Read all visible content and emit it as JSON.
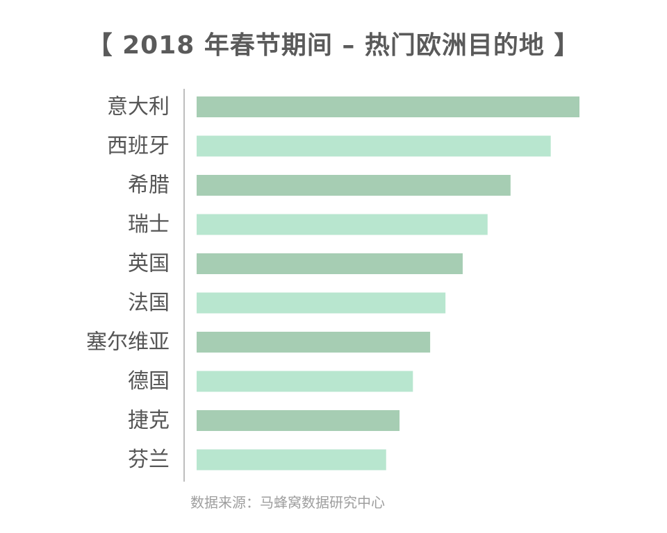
{
  "chart_data": {
    "type": "bar",
    "orientation": "horizontal",
    "title": "【 2018 年春节期间 – 热门欧洲目的地 】",
    "categories": [
      "意大利",
      "西班牙",
      "希腊",
      "瑞士",
      "英国",
      "法国",
      "塞尔维亚",
      "德国",
      "捷克",
      "芬兰"
    ],
    "values": [
      100,
      92.5,
      82,
      76,
      69.5,
      65,
      61,
      56.5,
      53,
      49.5
    ],
    "xlabel": "",
    "ylabel": "",
    "xlim": [
      0,
      100
    ],
    "grid": false,
    "value_labels_shown": false,
    "colors": {
      "bar_dark": "#a6cdb3",
      "bar_light": "#b8e6cf",
      "axis": "#bdbdbd",
      "label": "#555555"
    }
  },
  "footer": {
    "source": "数据来源：马蜂窝数据研究中心"
  }
}
